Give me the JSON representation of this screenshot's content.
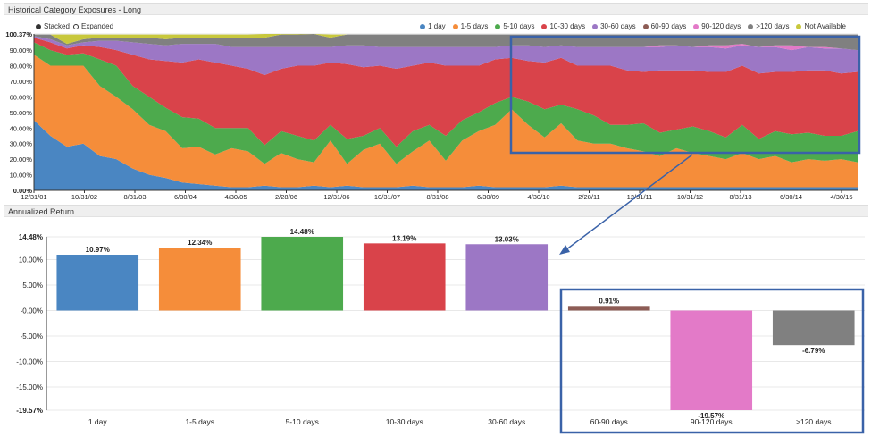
{
  "panels": {
    "top_title": "Historical Category Exposures - Long",
    "bottom_title": "Annualized Return"
  },
  "toggles": {
    "stacked": "Stacked",
    "expanded": "Expanded"
  },
  "colors": {
    "1 day": "#4a86c2",
    "1-5 days": "#f58d3a",
    "5-10 days": "#4daa4d",
    "10-30 days": "#d9434a",
    "30-60 days": "#9c77c5",
    "60-90 days": "#8d5c55",
    "90-120 days": "#e37ac8",
    ">120 days": "#808080",
    "Not Available": "#c8c83c",
    "highlight_box": "#3a62a8"
  },
  "chart_data": [
    {
      "type": "area",
      "stacked": true,
      "title": "Historical Category Exposures - Long",
      "y_tick_labels": [
        "0.00%",
        "10.00%",
        "20.00%",
        "30.00%",
        "40.00%",
        "50.00%",
        "60.00%",
        "70.00%",
        "80.00%",
        "90.00%",
        "100.37%"
      ],
      "ylim": [
        0,
        100.37
      ],
      "x_tick_labels": [
        "12/31/01",
        "10/31/02",
        "8/31/03",
        "6/30/04",
        "4/30/05",
        "2/28/06",
        "12/31/06",
        "10/31/07",
        "8/31/08",
        "6/30/09",
        "4/30/10",
        "2/28/11",
        "12/31/11",
        "10/31/12",
        "8/31/13",
        "6/30/14",
        "4/30/15"
      ],
      "legend": [
        "1 day",
        "1-5 days",
        "5-10 days",
        "10-30 days",
        "30-60 days",
        "60-90 days",
        "90-120 days",
        ">120 days",
        "Not Available"
      ],
      "legend_position": "top-right",
      "series": [
        {
          "name": "1 day",
          "values": [
            45,
            35,
            28,
            30,
            22,
            20,
            14,
            10,
            8,
            5,
            4,
            3,
            2,
            2,
            3,
            2,
            2,
            3,
            2,
            3,
            2,
            2,
            2,
            3,
            2,
            2,
            2,
            3,
            2,
            2,
            2,
            2,
            3,
            2,
            2,
            2,
            2,
            2,
            2,
            2,
            2,
            2,
            2,
            2,
            2,
            2,
            2,
            2,
            2,
            2,
            2
          ]
        },
        {
          "name": "1-5 days",
          "values": [
            42,
            45,
            52,
            50,
            45,
            40,
            38,
            32,
            30,
            22,
            24,
            20,
            25,
            23,
            14,
            22,
            18,
            15,
            30,
            14,
            24,
            28,
            15,
            22,
            30,
            17,
            30,
            35,
            40,
            50,
            40,
            32,
            40,
            30,
            28,
            28,
            25,
            23,
            20,
            25,
            22,
            20,
            18,
            22,
            18,
            20,
            16,
            18,
            17,
            18,
            16
          ]
        },
        {
          "name": "5-10 days",
          "values": [
            8,
            10,
            7,
            8,
            17,
            20,
            15,
            18,
            15,
            20,
            18,
            17,
            13,
            15,
            12,
            14,
            15,
            14,
            10,
            16,
            9,
            10,
            11,
            13,
            10,
            16,
            13,
            12,
            14,
            8,
            15,
            18,
            12,
            20,
            18,
            12,
            15,
            18,
            15,
            12,
            17,
            16,
            14,
            18,
            13,
            16,
            18,
            17,
            16,
            15,
            20
          ]
        },
        {
          "name": "10-30 days",
          "values": [
            3,
            5,
            4,
            5,
            8,
            10,
            20,
            24,
            30,
            35,
            38,
            42,
            40,
            38,
            45,
            40,
            45,
            48,
            40,
            48,
            44,
            40,
            50,
            42,
            40,
            45,
            35,
            30,
            28,
            25,
            26,
            30,
            30,
            28,
            32,
            38,
            35,
            33,
            40,
            38,
            36,
            38,
            42,
            38,
            42,
            38,
            40,
            40,
            42,
            40,
            38
          ]
        },
        {
          "name": "30-60 days",
          "values": [
            1,
            2,
            2,
            2,
            4,
            6,
            8,
            10,
            10,
            12,
            10,
            12,
            12,
            14,
            18,
            14,
            12,
            12,
            10,
            12,
            14,
            12,
            14,
            12,
            10,
            12,
            12,
            12,
            8,
            8,
            10,
            10,
            8,
            12,
            12,
            12,
            15,
            16,
            15,
            16,
            15,
            16,
            15,
            13,
            17,
            16,
            14,
            15,
            14,
            16,
            14
          ]
        },
        {
          "name": "60-90 days",
          "values": [
            0,
            0,
            0,
            0,
            0,
            0,
            0,
            0,
            0,
            0,
            0,
            0,
            0,
            0,
            0,
            0,
            0,
            0,
            0,
            0,
            0,
            0,
            0,
            0,
            0,
            0,
            0,
            0,
            0,
            0,
            0,
            0,
            0,
            0,
            0,
            0,
            0,
            0,
            0,
            0,
            0,
            0,
            0,
            0,
            0,
            0,
            0,
            0,
            0,
            0,
            0
          ]
        },
        {
          "name": "90-120 days",
          "values": [
            0,
            0,
            0,
            0,
            0,
            0,
            0,
            0,
            0,
            0,
            0,
            0,
            0,
            0,
            0,
            0,
            0,
            0,
            0,
            0,
            0,
            0,
            0,
            0,
            0,
            0,
            0,
            0,
            0,
            0,
            0,
            0,
            0,
            0,
            0,
            0,
            0,
            0,
            1,
            0,
            0,
            1,
            2,
            1,
            0,
            1,
            3,
            0,
            1,
            0,
            0
          ]
        },
        {
          "name": ">120 days",
          "values": [
            1,
            3,
            1,
            2,
            2,
            2,
            3,
            4,
            4,
            4,
            4,
            4,
            6,
            6,
            6,
            8,
            8,
            9,
            6,
            7,
            7,
            8,
            8,
            8,
            8,
            8,
            8,
            8,
            8,
            7,
            7,
            8,
            7,
            8,
            8,
            8,
            8,
            8,
            7,
            7,
            8,
            7,
            7,
            6,
            8,
            7,
            7,
            8,
            8,
            9,
            10
          ]
        },
        {
          "name": "Not Available",
          "values": [
            0,
            0,
            6,
            3,
            2,
            2,
            2,
            2,
            3,
            2,
            2,
            2,
            2,
            2,
            5,
            2,
            2,
            2,
            2,
            0,
            0,
            0,
            0,
            0,
            0,
            0,
            0,
            0,
            0,
            0,
            0,
            0,
            0,
            0,
            0,
            0,
            0,
            0,
            0,
            0,
            0,
            0,
            0,
            0,
            0,
            0,
            0,
            0,
            0,
            0,
            0
          ]
        }
      ]
    },
    {
      "type": "bar",
      "title": "Annualized Return",
      "categories": [
        "1 day",
        "1-5 days",
        "5-10 days",
        "10-30 days",
        "30-60 days",
        "60-90 days",
        "90-120 days",
        ">120 days"
      ],
      "values": [
        10.97,
        12.34,
        14.48,
        13.19,
        13.03,
        0.91,
        -19.57,
        -6.79
      ],
      "value_labels": [
        "10.97%",
        "12.34%",
        "14.48%",
        "13.19%",
        "13.03%",
        "0.91%",
        "-19.57%",
        "-6.79%"
      ],
      "y_tick_labels": [
        "14.48%",
        "10.00%",
        "5.00%",
        "-0.00%",
        "-5.00%",
        "-10.00%",
        "-15.00%",
        "-19.57%"
      ],
      "y_tick_values": [
        14.48,
        10,
        5,
        0,
        -5,
        -10,
        -15,
        -19.57
      ],
      "ylim": [
        -19.57,
        14.48
      ],
      "grid": true
    }
  ]
}
